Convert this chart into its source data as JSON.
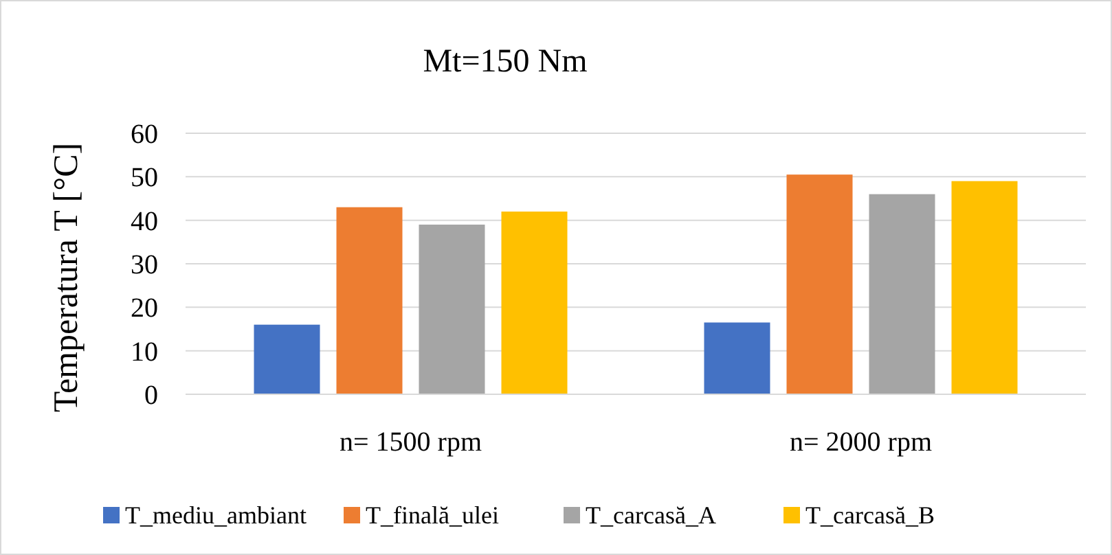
{
  "chart_data": {
    "type": "bar",
    "title": "Mt=150 Nm",
    "ylabel": "Temperatura T [°C]",
    "categories": [
      "n= 1500 rpm",
      "n= 2000 rpm"
    ],
    "series": [
      {
        "name": "T_mediu_ambiant",
        "color": "#4472c4",
        "values": [
          16,
          16.5
        ]
      },
      {
        "name": "T_finală_ulei",
        "color": "#ed7d31",
        "values": [
          43,
          50.5
        ]
      },
      {
        "name": "T_carcasă_A",
        "color": "#a5a5a5",
        "values": [
          39,
          46
        ]
      },
      {
        "name": "T_carcasă_B",
        "color": "#ffc000",
        "values": [
          42,
          49
        ]
      }
    ],
    "ylim": [
      0,
      60
    ],
    "yticks": [
      0,
      10,
      20,
      30,
      40,
      50,
      60
    ],
    "grid": "y",
    "legend": "bottom"
  }
}
